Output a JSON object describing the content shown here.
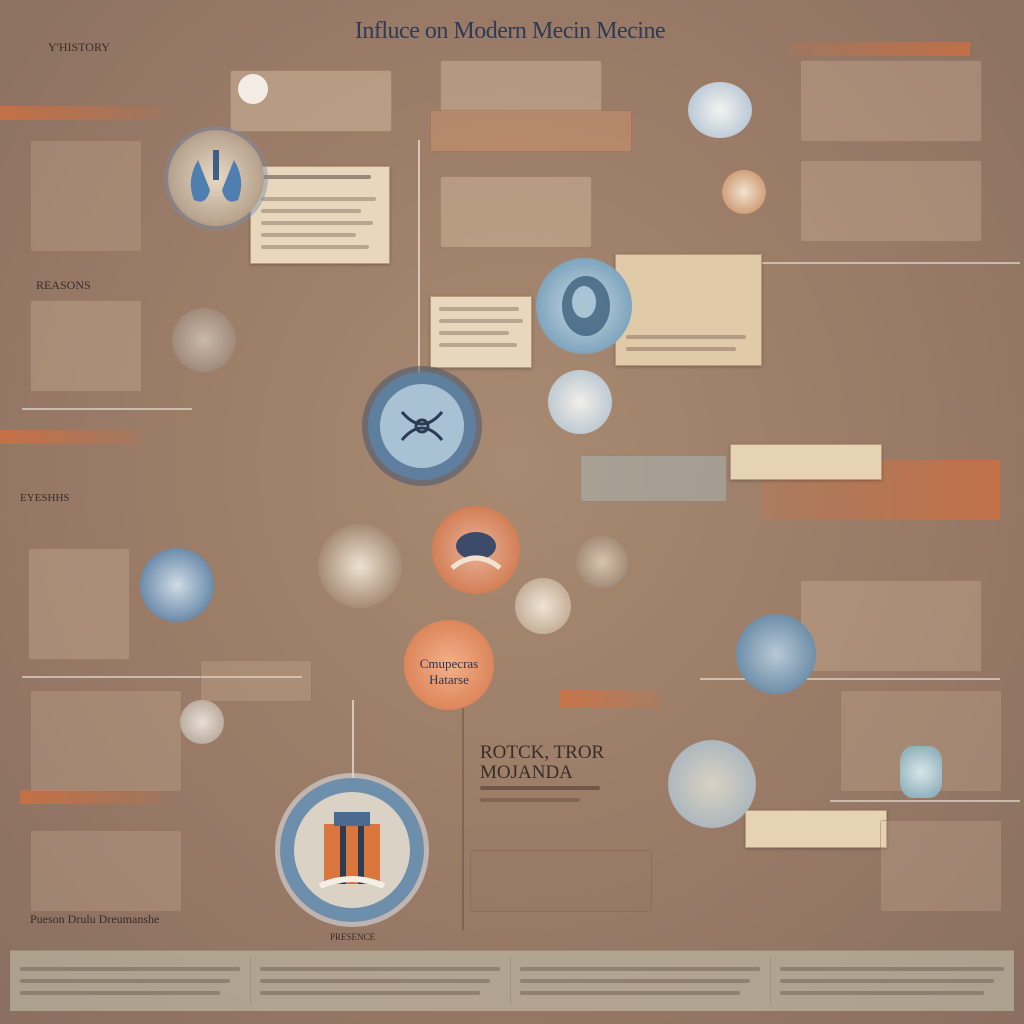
{
  "title": "Influce on Modern Mecin Mecine",
  "corner_labels": {
    "top_left": "Y'HISTORY",
    "left_mid": "REASONS",
    "left_lower": "EYESHHS",
    "bottom_left": "Pueson Drulu Dreumanshe"
  },
  "center_badge": {
    "line1": "Cmupecras",
    "line2": "Hatarse"
  },
  "lower_center_heading": {
    "line1": "ROTCK, TROR",
    "line2": "MOJANDA"
  },
  "footer_center": "PRESENCE",
  "colors": {
    "background": "#9c7d68",
    "accent_blue": "#5f7f9e",
    "accent_orange": "#d06e3c",
    "card": "#e8d7bd",
    "title": "#2f3b55"
  },
  "icons": [
    "medical-diagram-icon",
    "stethoscope-icon",
    "microscope-icon",
    "pill-icon",
    "lungs-icon"
  ]
}
